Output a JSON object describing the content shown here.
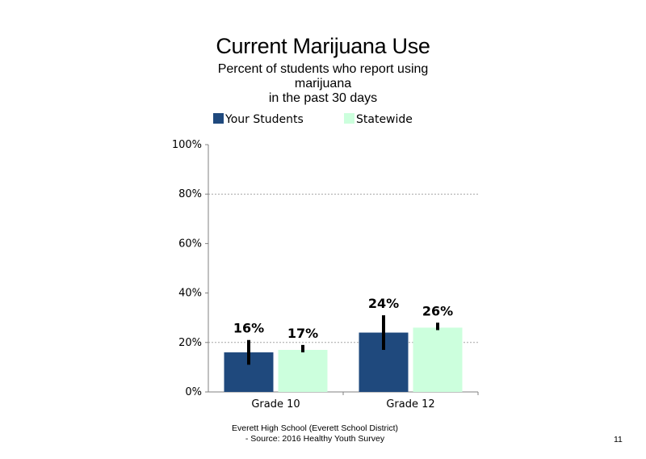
{
  "colors": {
    "your_students": "#1f497d",
    "statewide": "#ccffdd",
    "error_bar": "#000000",
    "grid": "#a6a6a6"
  },
  "legend": {
    "series1": "Your Students",
    "series2": "Statewide"
  },
  "footer": {
    "line1": "Everett High  School (Everett School District)",
    "line2": "- Source: 2016 Healthy  Youth Survey"
  },
  "page_number": "11",
  "chart_data": {
    "type": "bar",
    "title": "Current Marijuana Use",
    "subtitle_lines": [
      "Percent of students who report using",
      "marijuana",
      "in the past 30 days"
    ],
    "categories": [
      "Grade 10",
      "Grade 12"
    ],
    "series": [
      {
        "name": "Your Students",
        "values": [
          16,
          24
        ],
        "labels": [
          "16%",
          "24%"
        ],
        "error_low": [
          11,
          17
        ],
        "error_high": [
          21,
          31
        ]
      },
      {
        "name": "Statewide",
        "values": [
          17,
          26
        ],
        "labels": [
          "17%",
          "26%"
        ],
        "error_low": [
          16,
          25
        ],
        "error_high": [
          19,
          28
        ]
      }
    ],
    "y_ticks": [
      0,
      20,
      40,
      60,
      80,
      100
    ],
    "y_tick_labels": [
      "0%",
      "20%",
      "40%",
      "60%",
      "80%",
      "100%"
    ],
    "gridlines_at": [
      20,
      80
    ],
    "ylim": [
      0,
      100
    ],
    "legend_position": "top",
    "xlabel": "",
    "ylabel": ""
  }
}
